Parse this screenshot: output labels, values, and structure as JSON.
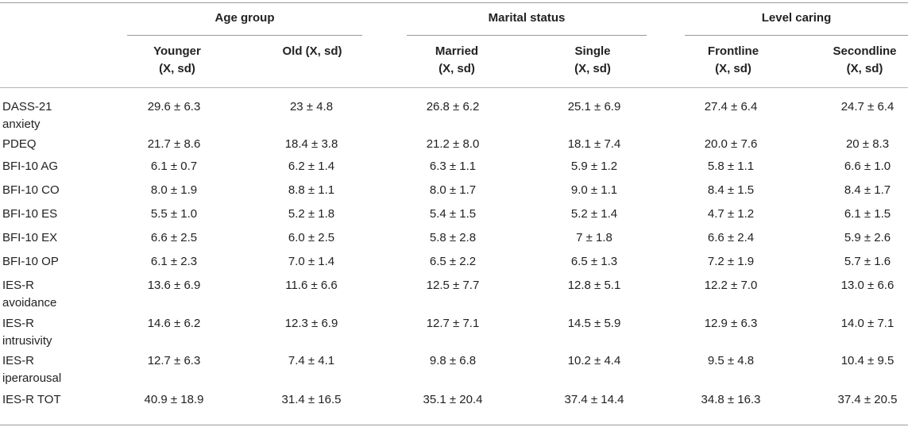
{
  "header": {
    "groups": [
      {
        "label": "Age group",
        "subs": [
          "Younger\n(X, sd)",
          "Old (X, sd)"
        ]
      },
      {
        "label": "Marital status",
        "subs": [
          "Married\n(X, sd)",
          "Single\n(X, sd)"
        ]
      },
      {
        "label": "Level caring",
        "subs": [
          "Frontline\n(X, sd)",
          "Secondline\n(X, sd)"
        ]
      }
    ],
    "sub_lines": [
      [
        "Younger",
        "(X, sd)"
      ],
      [
        "Old (X, sd)"
      ],
      [
        "Married",
        "(X, sd)"
      ],
      [
        "Single",
        "(X, sd)"
      ],
      [
        "Frontline",
        "(X, sd)"
      ],
      [
        "Secondline",
        "(X, sd)"
      ]
    ]
  },
  "rows": [
    {
      "label": [
        "DASS-21",
        "anxiety"
      ],
      "values": [
        "29.6 ± 6.3",
        "23 ± 4.8",
        "26.8 ± 6.2",
        "25.1 ± 6.9",
        "27.4 ± 6.4",
        "24.7 ± 6.4"
      ]
    },
    {
      "label": [
        "PDEQ"
      ],
      "values": [
        "21.7 ± 8.6",
        "18.4 ± 3.8",
        "21.2 ± 8.0",
        "18.1 ± 7.4",
        "20.0 ± 7.6",
        "20 ± 8.3"
      ]
    },
    {
      "label": [
        "BFI-10 AG"
      ],
      "values": [
        "6.1 ± 0.7",
        "6.2 ± 1.4",
        "6.3 ± 1.1",
        "5.9 ± 1.2",
        "5.8 ± 1.1",
        "6.6 ± 1.0"
      ]
    },
    {
      "label": [
        "BFI-10 CO"
      ],
      "values": [
        "8.0 ± 1.9",
        "8.8 ± 1.1",
        "8.0 ± 1.7",
        "9.0 ± 1.1",
        "8.4 ± 1.5",
        "8.4 ± 1.7"
      ]
    },
    {
      "label": [
        "BFI-10 ES"
      ],
      "values": [
        "5.5 ± 1.0",
        "5.2 ± 1.8",
        "5.4 ± 1.5",
        "5.2 ± 1.4",
        "4.7 ± 1.2",
        "6.1 ± 1.5"
      ]
    },
    {
      "label": [
        "BFI-10 EX"
      ],
      "values": [
        "6.6 ± 2.5",
        "6.0 ± 2.5",
        "5.8 ± 2.8",
        "7 ± 1.8",
        "6.6 ± 2.4",
        "5.9 ± 2.6"
      ]
    },
    {
      "label": [
        "BFI-10 OP"
      ],
      "values": [
        "6.1 ± 2.3",
        "7.0 ± 1.4",
        "6.5 ± 2.2",
        "6.5 ± 1.3",
        "7.2 ± 1.9",
        "5.7 ± 1.6"
      ]
    },
    {
      "label": [
        "IES-R",
        "avoidance"
      ],
      "values": [
        "13.6 ± 6.9",
        "11.6 ± 6.6",
        "12.5 ± 7.7",
        "12.8 ± 5.1",
        "12.2 ± 7.0",
        "13.0 ± 6.6"
      ]
    },
    {
      "label": [
        "IES-R",
        "intrusivity"
      ],
      "values": [
        "14.6 ± 6.2",
        "12.3 ± 6.9",
        "12.7 ± 7.1",
        "14.5 ± 5.9",
        "12.9 ± 6.3",
        "14.0 ± 7.1"
      ]
    },
    {
      "label": [
        "IES-R",
        "iperarousal"
      ],
      "values": [
        "12.7 ± 6.3",
        "7.4 ± 4.1",
        "9.8 ± 6.8",
        "10.2 ± 4.4",
        "9.5 ± 4.8",
        "10.4 ± 9.5"
      ]
    },
    {
      "label": [
        "IES-R TOT"
      ],
      "values": [
        "40.9 ± 18.9",
        "31.4 ± 16.5",
        "35.1 ± 20.4",
        "37.4 ± 14.4",
        "34.8 ± 16.3",
        "37.4 ± 20.5"
      ]
    }
  ]
}
